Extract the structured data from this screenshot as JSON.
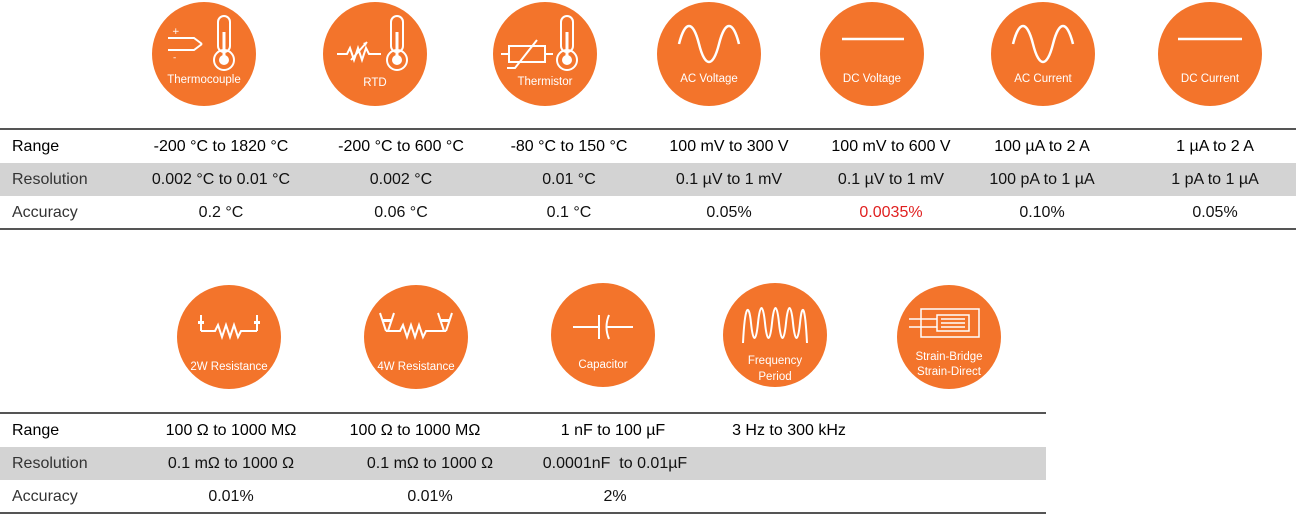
{
  "icons_top": [
    {
      "label": "Thermocouple",
      "icon": "thermocouple-icon"
    },
    {
      "label": "RTD",
      "icon": "rtd-icon"
    },
    {
      "label": "Thermistor",
      "icon": "thermistor-icon"
    },
    {
      "label": "AC Voltage",
      "icon": "ac-voltage-icon"
    },
    {
      "label": "DC Voltage",
      "icon": "dc-voltage-icon"
    },
    {
      "label": "AC Current",
      "icon": "ac-current-icon"
    },
    {
      "label": "DC Current",
      "icon": "dc-current-icon"
    }
  ],
  "table_top": {
    "row_labels": [
      "Range",
      "Resolution",
      "Accuracy"
    ],
    "range": [
      "-200 °C to 1820 °C",
      "-200 °C to 600 °C",
      "-80 °C to 150 °C",
      "100 mV to 300 V",
      "100 mV to 600 V",
      "100 µA to 2 A",
      "1 µA to 2 A"
    ],
    "resolution": [
      "0.002 °C to 0.01 °C",
      "0.002 °C",
      "0.01 °C",
      "0.1 µV to 1 mV",
      "0.1 µV to 1 mV",
      "100 pA to 1 µA",
      "1 pA to 1 µA"
    ],
    "accuracy": [
      "0.2 °C",
      "0.06 °C",
      "0.1 °C",
      "0.05%",
      "0.0035%",
      "0.10%",
      "0.05%"
    ],
    "highlight_color": "#e02020"
  },
  "icons_bottom": [
    {
      "label": "2W Resistance",
      "icon": "2w-resistance-icon"
    },
    {
      "label": "4W Resistance",
      "icon": "4w-resistance-icon"
    },
    {
      "label": "Capacitor",
      "icon": "capacitor-icon"
    },
    {
      "label": "Frequency",
      "label2": "Period",
      "icon": "frequency-icon"
    },
    {
      "label": "Strain-Bridge",
      "label2": "Strain-Direct",
      "icon": "strain-icon"
    }
  ],
  "table_bottom": {
    "row_labels": [
      "Range",
      "Resolution",
      "Accuracy"
    ],
    "range": [
      "100 Ω to 1000 MΩ",
      "100 Ω to 1000 MΩ",
      "1 nF to 100 µF",
      "3 Hz to 300 kHz"
    ],
    "resolution": [
      "0.1 mΩ to 1000 Ω",
      "0.1 mΩ to 1000 Ω",
      "0.0001nF  to 0.01µF"
    ],
    "accuracy": [
      "0.01%",
      "0.01%",
      "2%"
    ]
  },
  "colors": {
    "accent": "#f3742b",
    "shade": "#d3d3d3",
    "red": "#e02020"
  }
}
